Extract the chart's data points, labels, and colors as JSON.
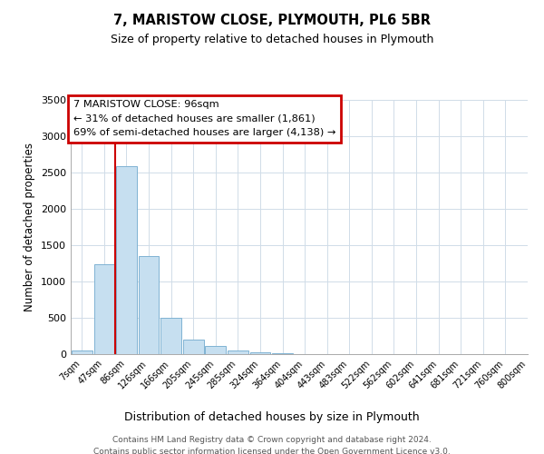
{
  "title": "7, MARISTOW CLOSE, PLYMOUTH, PL6 5BR",
  "subtitle": "Size of property relative to detached houses in Plymouth",
  "xlabel": "Distribution of detached houses by size in Plymouth",
  "ylabel": "Number of detached properties",
  "bin_labels": [
    "7sqm",
    "47sqm",
    "86sqm",
    "126sqm",
    "166sqm",
    "205sqm",
    "245sqm",
    "285sqm",
    "324sqm",
    "364sqm",
    "404sqm",
    "443sqm",
    "483sqm",
    "522sqm",
    "562sqm",
    "602sqm",
    "641sqm",
    "681sqm",
    "721sqm",
    "760sqm",
    "800sqm"
  ],
  "bar_values": [
    50,
    1240,
    2590,
    1350,
    500,
    200,
    110,
    55,
    30,
    15,
    5,
    2,
    1,
    0,
    0,
    0,
    0,
    0,
    0,
    0
  ],
  "bar_color": "#c6dff0",
  "bar_edge_color": "#7fb3d3",
  "vline_color": "#cc0000",
  "ylim": [
    0,
    3500
  ],
  "yticks": [
    0,
    500,
    1000,
    1500,
    2000,
    2500,
    3000,
    3500
  ],
  "annotation_title": "7 MARISTOW CLOSE: 96sqm",
  "annotation_line1": "← 31% of detached houses are smaller (1,861)",
  "annotation_line2": "69% of semi-detached houses are larger (4,138) →",
  "footer_line1": "Contains HM Land Registry data © Crown copyright and database right 2024.",
  "footer_line2": "Contains public sector information licensed under the Open Government Licence v3.0.",
  "background_color": "#ffffff",
  "grid_color": "#d0dce8"
}
